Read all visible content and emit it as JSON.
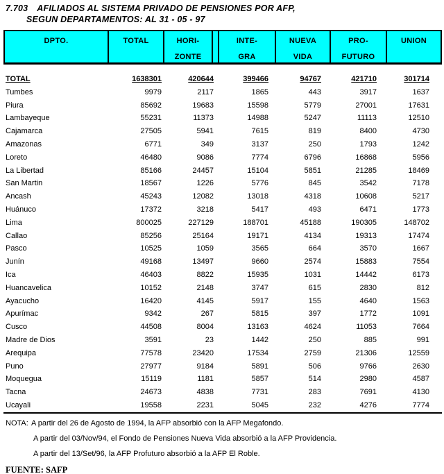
{
  "page": {
    "title_number": "7.703",
    "title_line1": "AFILIADOS AL SISTEMA PRIVADO DE PENSIONES POR AFP,",
    "title_line2": "SEGUN DEPARTAMENTOS: AL 31 - 05 - 97"
  },
  "table": {
    "columns": [
      {
        "line1": "DPTO.",
        "line2": ""
      },
      {
        "line1": "TOTAL",
        "line2": ""
      },
      {
        "line1": "HORI-",
        "line2": "ZONTE"
      },
      {
        "line1": "INTE-",
        "line2": "GRA"
      },
      {
        "line1": "NUEVA",
        "line2": "VIDA"
      },
      {
        "line1": "PRO-",
        "line2": "FUTURO"
      },
      {
        "line1": "UNION",
        "line2": ""
      }
    ],
    "total_row": {
      "label": "TOTAL",
      "values": [
        "1638301",
        "420644",
        "399466",
        "94767",
        "421710",
        "301714"
      ]
    },
    "rows": [
      {
        "label": "Tumbes",
        "values": [
          "9979",
          "2117",
          "1865",
          "443",
          "3917",
          "1637"
        ]
      },
      {
        "label": "Piura",
        "values": [
          "85692",
          "19683",
          "15598",
          "5779",
          "27001",
          "17631"
        ]
      },
      {
        "label": "Lambayeque",
        "values": [
          "55231",
          "11373",
          "14988",
          "5247",
          "11113",
          "12510"
        ]
      },
      {
        "label": "Cajamarca",
        "values": [
          "27505",
          "5941",
          "7615",
          "819",
          "8400",
          "4730"
        ]
      },
      {
        "label": "Amazonas",
        "values": [
          "6771",
          "349",
          "3137",
          "250",
          "1793",
          "1242"
        ]
      },
      {
        "label": "Loreto",
        "values": [
          "46480",
          "9086",
          "7774",
          "6796",
          "16868",
          "5956"
        ]
      },
      {
        "label": "La Libertad",
        "values": [
          "85166",
          "24457",
          "15104",
          "5851",
          "21285",
          "18469"
        ]
      },
      {
        "label": "San Martin",
        "values": [
          "18567",
          "1226",
          "5776",
          "845",
          "3542",
          "7178"
        ]
      },
      {
        "label": "Ancash",
        "values": [
          "45243",
          "12082",
          "13018",
          "4318",
          "10608",
          "5217"
        ]
      },
      {
        "label": "Huánuco",
        "values": [
          "17372",
          "3218",
          "5417",
          "493",
          "6471",
          "1773"
        ]
      },
      {
        "label": "Lima",
        "values": [
          "800025",
          "227129",
          "188701",
          "45188",
          "190305",
          "148702"
        ]
      },
      {
        "label": "Callao",
        "values": [
          "85256",
          "25164",
          "19171",
          "4134",
          "19313",
          "17474"
        ]
      },
      {
        "label": "Pasco",
        "values": [
          "10525",
          "1059",
          "3565",
          "664",
          "3570",
          "1667"
        ]
      },
      {
        "label": "Junín",
        "values": [
          "49168",
          "13497",
          "9660",
          "2574",
          "15883",
          "7554"
        ]
      },
      {
        "label": "Ica",
        "values": [
          "46403",
          "8822",
          "15935",
          "1031",
          "14442",
          "6173"
        ]
      },
      {
        "label": "Huancavelica",
        "values": [
          "10152",
          "2148",
          "3747",
          "615",
          "2830",
          "812"
        ]
      },
      {
        "label": "Ayacucho",
        "values": [
          "16420",
          "4145",
          "5917",
          "155",
          "4640",
          "1563"
        ]
      },
      {
        "label": "Apurímac",
        "values": [
          "9342",
          "267",
          "5815",
          "397",
          "1772",
          "1091"
        ]
      },
      {
        "label": "Cusco",
        "values": [
          "44508",
          "8004",
          "13163",
          "4624",
          "11053",
          "7664"
        ]
      },
      {
        "label": "Madre de Dios",
        "values": [
          "3591",
          "23",
          "1442",
          "250",
          "885",
          "991"
        ]
      },
      {
        "label": "Arequipa",
        "values": [
          "77578",
          "23420",
          "17534",
          "2759",
          "21306",
          "12559"
        ]
      },
      {
        "label": "Puno",
        "values": [
          "27977",
          "9184",
          "5891",
          "506",
          "9766",
          "2630"
        ]
      },
      {
        "label": "Moquegua",
        "values": [
          "15119",
          "1181",
          "5857",
          "514",
          "2980",
          "4587"
        ]
      },
      {
        "label": "Tacna",
        "values": [
          "24673",
          "4838",
          "7731",
          "283",
          "7691",
          "4130"
        ]
      },
      {
        "label": "Ucayali",
        "values": [
          "19558",
          "2231",
          "5045",
          "232",
          "4276",
          "7774"
        ]
      }
    ]
  },
  "notes": {
    "label": "NOTA:",
    "lines": [
      "A partir del 26 de Agosto de 1994, la AFP absorbió con la AFP Megafondo.",
      "A partir del 03/Nov/94, el Fondo de Pensiones Nueva Vida absorbió a la AFP Providencia.",
      "A partir del 13/Set/96, la AFP Profuturo absorbió a la AFP El Roble."
    ]
  },
  "source": {
    "label": "FUENTE:",
    "value": "SAFP"
  },
  "colors": {
    "header_bg": "#00FFFF",
    "border": "#000000"
  }
}
